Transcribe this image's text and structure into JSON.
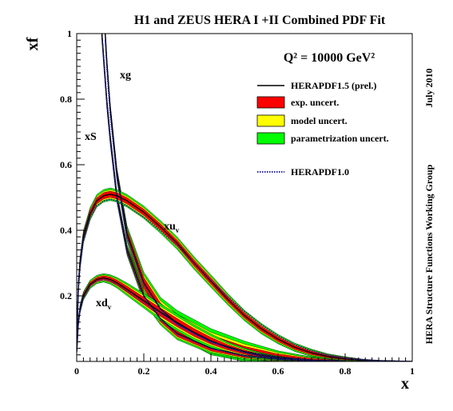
{
  "chart_data": {
    "type": "line",
    "title": "H1 and ZEUS HERA I +II Combined PDF Fit",
    "annotation": "Q² = 10000 GeV²",
    "xlabel": "x",
    "ylabel": "xf",
    "xlim": [
      0,
      1
    ],
    "ylim": [
      0,
      1
    ],
    "x_scale": "linear",
    "grid": false,
    "x_ticks": [
      "0",
      "0.2",
      "0.4",
      "0.6",
      "0.8",
      "1"
    ],
    "y_ticks": [
      "0.2",
      "0.4",
      "0.6",
      "0.8",
      "1"
    ],
    "side_labels": {
      "date": "July 2010",
      "group": "HERA Structure Functions Working Group"
    },
    "legend_position": "top-right",
    "legend": [
      {
        "label": "HERAPDF1.5 (prel.)",
        "kind": "line",
        "color": "#000000"
      },
      {
        "label": "exp. uncert.",
        "kind": "box",
        "color": "#ff0000"
      },
      {
        "label": "model uncert.",
        "kind": "box",
        "color": "#ffff00"
      },
      {
        "label": "parametrization uncert.",
        "kind": "box",
        "color": "#00ff00"
      },
      {
        "label": "HERAPDF1.0",
        "kind": "dotted",
        "color": "#2222aa"
      }
    ],
    "curve_labels": {
      "xg": "xg",
      "xS": "xS",
      "xuv": "xu",
      "xuv_sub": "v",
      "xdv": "xd",
      "xdv_sub": "v"
    },
    "series": [
      {
        "id": "xg",
        "x": [
          0.085,
          0.09,
          0.1,
          0.12,
          0.15,
          0.2,
          0.25,
          0.3,
          0.4,
          0.5,
          0.6,
          0.7,
          0.8
        ],
        "y": [
          1.0,
          0.91,
          0.77,
          0.57,
          0.39,
          0.24,
          0.16,
          0.115,
          0.06,
          0.03,
          0.013,
          0.004,
          0.001
        ],
        "band_halfwidth": [
          0.01,
          0.01,
          0.01,
          0.012,
          0.015,
          0.02,
          0.022,
          0.025,
          0.025,
          0.02,
          0.012,
          0.006,
          0.002
        ],
        "ref_y": [
          0.98,
          0.89,
          0.75,
          0.56,
          0.38,
          0.235,
          0.158,
          0.112,
          0.058,
          0.029,
          0.012,
          0.004,
          0.001
        ]
      },
      {
        "id": "xS",
        "x": [
          0.075,
          0.08,
          0.09,
          0.1,
          0.12,
          0.15,
          0.2,
          0.25,
          0.3,
          0.4,
          0.5,
          0.6,
          0.7
        ],
        "y": [
          1.0,
          0.93,
          0.79,
          0.68,
          0.5,
          0.34,
          0.2,
          0.13,
          0.085,
          0.04,
          0.018,
          0.007,
          0.002
        ],
        "band_halfwidth": [
          0.01,
          0.01,
          0.01,
          0.01,
          0.01,
          0.01,
          0.012,
          0.012,
          0.012,
          0.01,
          0.008,
          0.005,
          0.002
        ],
        "ref_y": [
          0.99,
          0.92,
          0.78,
          0.67,
          0.495,
          0.336,
          0.198,
          0.128,
          0.083,
          0.039,
          0.017,
          0.007,
          0.002
        ]
      },
      {
        "id": "xuv",
        "x": [
          0.0,
          0.005,
          0.01,
          0.02,
          0.04,
          0.06,
          0.08,
          0.1,
          0.12,
          0.15,
          0.2,
          0.25,
          0.3,
          0.35,
          0.4,
          0.45,
          0.5,
          0.55,
          0.6,
          0.65,
          0.7,
          0.75,
          0.8,
          0.85,
          0.9,
          0.95,
          1.0
        ],
        "y": [
          0.05,
          0.23,
          0.3,
          0.38,
          0.45,
          0.49,
          0.505,
          0.51,
          0.505,
          0.49,
          0.455,
          0.41,
          0.36,
          0.3,
          0.245,
          0.19,
          0.14,
          0.1,
          0.068,
          0.043,
          0.026,
          0.015,
          0.008,
          0.004,
          0.002,
          0.0008,
          0.0
        ],
        "band_halfwidth": [
          0.02,
          0.015,
          0.012,
          0.012,
          0.012,
          0.012,
          0.012,
          0.012,
          0.012,
          0.012,
          0.012,
          0.012,
          0.012,
          0.012,
          0.012,
          0.011,
          0.01,
          0.01,
          0.009,
          0.008,
          0.007,
          0.005,
          0.004,
          0.002,
          0.001,
          0.001,
          0.0
        ],
        "ref_y": [
          0.05,
          0.22,
          0.29,
          0.37,
          0.44,
          0.475,
          0.49,
          0.495,
          0.49,
          0.475,
          0.44,
          0.398,
          0.352,
          0.3,
          0.248,
          0.198,
          0.152,
          0.112,
          0.078,
          0.051,
          0.032,
          0.019,
          0.01,
          0.005,
          0.002,
          0.0008,
          0.0
        ]
      },
      {
        "id": "xdv",
        "x": [
          0.0,
          0.005,
          0.01,
          0.02,
          0.04,
          0.06,
          0.08,
          0.1,
          0.12,
          0.15,
          0.2,
          0.25,
          0.3,
          0.35,
          0.4,
          0.45,
          0.5,
          0.55,
          0.6,
          0.65,
          0.7,
          0.75,
          0.8
        ],
        "y": [
          0.03,
          0.12,
          0.16,
          0.2,
          0.235,
          0.25,
          0.255,
          0.25,
          0.24,
          0.22,
          0.185,
          0.15,
          0.118,
          0.088,
          0.063,
          0.043,
          0.028,
          0.017,
          0.01,
          0.005,
          0.002,
          0.001,
          0.0
        ],
        "band_halfwidth": [
          0.012,
          0.008,
          0.008,
          0.008,
          0.008,
          0.008,
          0.008,
          0.009,
          0.01,
          0.012,
          0.014,
          0.016,
          0.016,
          0.015,
          0.013,
          0.01,
          0.008,
          0.006,
          0.004,
          0.003,
          0.002,
          0.001,
          0.0
        ],
        "ref_y": [
          0.03,
          0.12,
          0.155,
          0.195,
          0.23,
          0.245,
          0.25,
          0.245,
          0.235,
          0.215,
          0.18,
          0.146,
          0.114,
          0.085,
          0.061,
          0.042,
          0.027,
          0.016,
          0.009,
          0.005,
          0.002,
          0.001,
          0.0
        ]
      }
    ]
  }
}
